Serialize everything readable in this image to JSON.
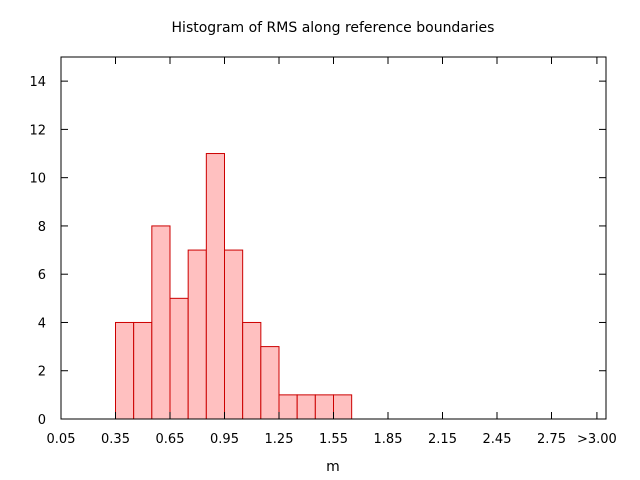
{
  "chart_data": {
    "type": "bar",
    "title": "Histogram of RMS along reference boundaries",
    "xlabel": "m",
    "ylabel": "",
    "bin_width": 0.1,
    "bin_start": 0.05,
    "xlim": [
      0.05,
      3.05
    ],
    "ylim": [
      0,
      15
    ],
    "x_ticks": [
      0.05,
      0.35,
      0.65,
      0.95,
      1.25,
      1.55,
      1.85,
      2.15,
      2.45,
      2.75,
      3.0
    ],
    "x_tick_labels": [
      "0.05",
      "0.35",
      "0.65",
      "0.95",
      "1.25",
      "1.55",
      "1.85",
      "2.15",
      "2.45",
      "2.75",
      ">3.00"
    ],
    "y_ticks": [
      0,
      2,
      4,
      6,
      8,
      10,
      12,
      14
    ],
    "y_tick_labels": [
      "0",
      "2",
      "4",
      "6",
      "8",
      "10",
      "12",
      "14"
    ],
    "values": [
      0,
      0,
      0,
      4,
      4,
      8,
      5,
      7,
      11,
      7,
      4,
      3,
      1,
      1,
      1,
      1,
      0,
      0,
      0,
      0,
      0,
      0,
      0,
      0,
      0,
      0,
      0,
      0,
      0,
      0
    ],
    "colors": {
      "bar_fill": "#ffc0c0",
      "bar_stroke": "#cc0000",
      "axis": "#000000"
    },
    "grid": false,
    "legend": "none"
  }
}
